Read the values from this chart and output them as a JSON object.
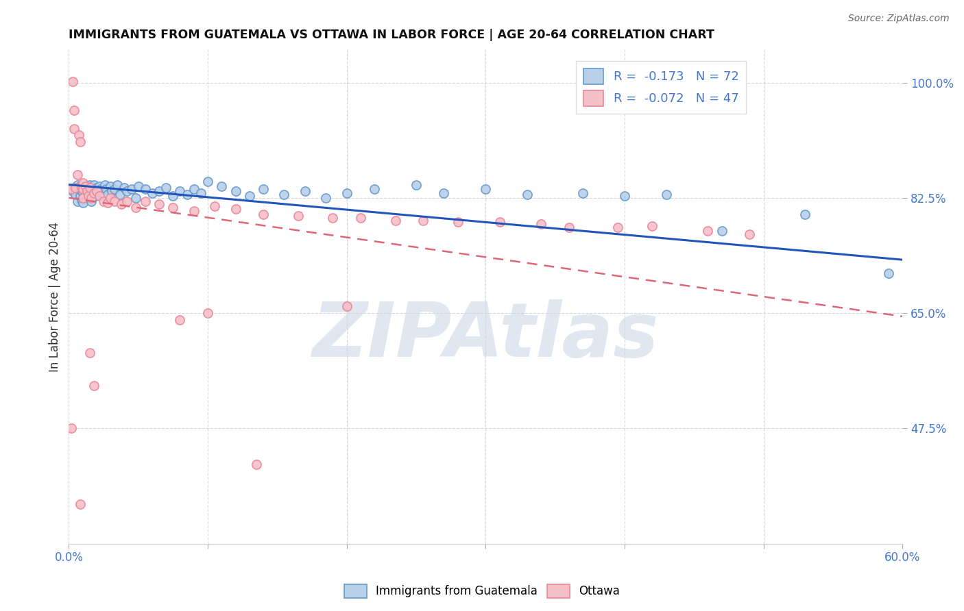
{
  "title": "IMMIGRANTS FROM GUATEMALA VS OTTAWA IN LABOR FORCE | AGE 20-64 CORRELATION CHART",
  "source": "Source: ZipAtlas.com",
  "ylabel": "In Labor Force | Age 20-64",
  "x_min": 0.0,
  "x_max": 0.6,
  "y_min": 0.3,
  "y_max": 1.05,
  "y_ticks": [
    0.475,
    0.65,
    0.825,
    1.0
  ],
  "y_tick_labels": [
    "47.5%",
    "65.0%",
    "82.5%",
    "100.0%"
  ],
  "blue_color": "#b8d0e8",
  "blue_edge_color": "#6699cc",
  "pink_color": "#f5bfc8",
  "pink_edge_color": "#e88898",
  "line_blue_color": "#2255bb",
  "line_pink_color": "#dd6677",
  "legend_blue_label": "R =  -0.173   N = 72",
  "legend_pink_label": "R =  -0.072   N = 47",
  "tick_color": "#4477cc",
  "watermark": "ZIPAtlas",
  "watermark_color": "#ccd8e8",
  "blue_intercept": 0.845,
  "blue_slope": -0.19,
  "pink_intercept": 0.825,
  "pink_slope": -0.3,
  "blue_x": [
    0.003,
    0.004,
    0.005,
    0.006,
    0.006,
    0.007,
    0.008,
    0.008,
    0.009,
    0.009,
    0.01,
    0.01,
    0.01,
    0.01,
    0.01,
    0.012,
    0.013,
    0.014,
    0.015,
    0.015,
    0.016,
    0.016,
    0.017,
    0.018,
    0.019,
    0.02,
    0.021,
    0.022,
    0.023,
    0.025,
    0.026,
    0.027,
    0.028,
    0.03,
    0.031,
    0.033,
    0.035,
    0.037,
    0.04,
    0.042,
    0.045,
    0.048,
    0.05,
    0.055,
    0.06,
    0.065,
    0.07,
    0.075,
    0.08,
    0.085,
    0.09,
    0.095,
    0.1,
    0.11,
    0.12,
    0.13,
    0.14,
    0.155,
    0.17,
    0.185,
    0.2,
    0.22,
    0.25,
    0.27,
    0.3,
    0.33,
    0.37,
    0.4,
    0.43,
    0.47,
    0.53,
    0.59
  ],
  "blue_y": [
    0.835,
    0.84,
    0.83,
    0.845,
    0.82,
    0.838,
    0.842,
    0.828,
    0.835,
    0.822,
    0.84,
    0.838,
    0.833,
    0.825,
    0.818,
    0.842,
    0.836,
    0.83,
    0.845,
    0.838,
    0.832,
    0.82,
    0.838,
    0.845,
    0.828,
    0.84,
    0.835,
    0.842,
    0.838,
    0.832,
    0.845,
    0.838,
    0.83,
    0.842,
    0.835,
    0.838,
    0.845,
    0.83,
    0.84,
    0.835,
    0.838,
    0.825,
    0.842,
    0.838,
    0.832,
    0.835,
    0.84,
    0.828,
    0.835,
    0.83,
    0.838,
    0.832,
    0.85,
    0.842,
    0.835,
    0.828,
    0.838,
    0.83,
    0.835,
    0.825,
    0.832,
    0.838,
    0.845,
    0.832,
    0.838,
    0.83,
    0.832,
    0.828,
    0.83,
    0.775,
    0.8,
    0.71
  ],
  "pink_x": [
    0.002,
    0.003,
    0.004,
    0.004,
    0.005,
    0.006,
    0.007,
    0.008,
    0.009,
    0.01,
    0.01,
    0.01,
    0.012,
    0.013,
    0.014,
    0.015,
    0.016,
    0.018,
    0.02,
    0.022,
    0.025,
    0.028,
    0.03,
    0.033,
    0.038,
    0.042,
    0.048,
    0.055,
    0.065,
    0.075,
    0.09,
    0.105,
    0.12,
    0.14,
    0.165,
    0.19,
    0.21,
    0.235,
    0.255,
    0.28,
    0.31,
    0.34,
    0.36,
    0.395,
    0.42,
    0.46,
    0.49
  ],
  "pink_y": [
    0.838,
    1.002,
    0.958,
    0.93,
    0.84,
    0.86,
    0.92,
    0.91,
    0.84,
    0.848,
    0.838,
    0.825,
    0.842,
    0.835,
    0.828,
    0.84,
    0.825,
    0.832,
    0.835,
    0.828,
    0.82,
    0.818,
    0.825,
    0.82,
    0.815,
    0.82,
    0.81,
    0.82,
    0.815,
    0.81,
    0.805,
    0.812,
    0.808,
    0.8,
    0.798,
    0.795,
    0.795,
    0.79,
    0.79,
    0.788,
    0.788,
    0.785,
    0.78,
    0.78,
    0.782,
    0.775,
    0.77
  ],
  "pink_outlier_x": [
    0.002,
    0.008,
    0.015,
    0.018,
    0.08,
    0.1,
    0.135,
    0.2
  ],
  "pink_outlier_y": [
    0.475,
    0.36,
    0.59,
    0.54,
    0.64,
    0.65,
    0.42,
    0.66
  ]
}
